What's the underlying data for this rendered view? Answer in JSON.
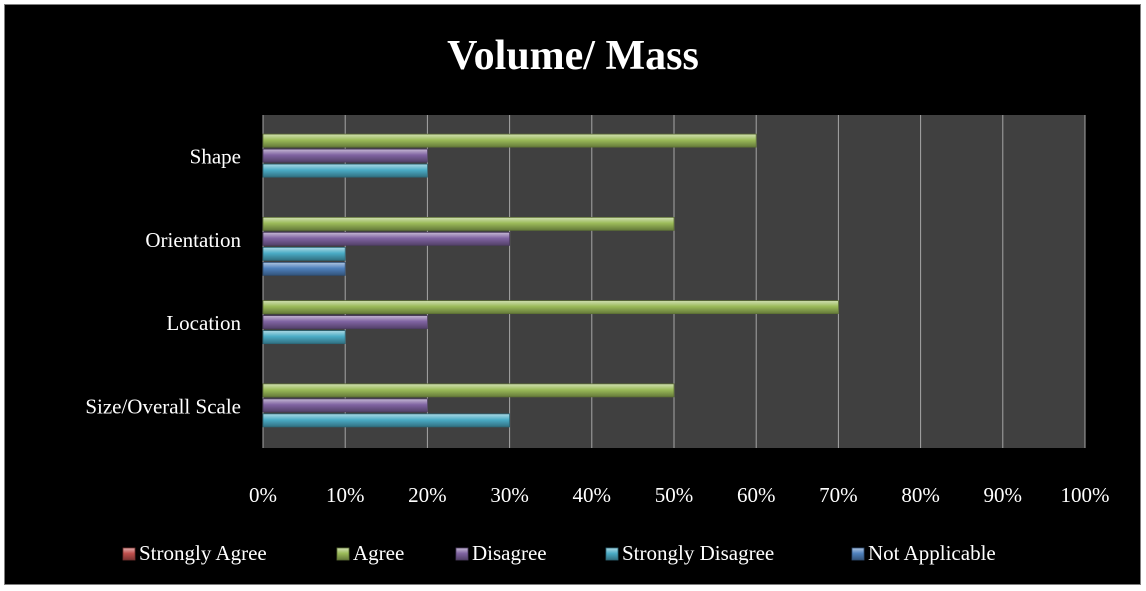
{
  "chart_data": {
    "type": "bar",
    "orientation": "horizontal",
    "title": "Volume/ Mass",
    "xlabel": "",
    "ylabel": "",
    "categories": [
      "Shape",
      "Orientation",
      "Location",
      "Size/Overall Scale"
    ],
    "series": [
      {
        "name": "Strongly Agree",
        "color": "#c0504d",
        "values": [
          0,
          0,
          0,
          0
        ]
      },
      {
        "name": "Agree",
        "color": "#9bbb59",
        "values": [
          60,
          50,
          70,
          50
        ]
      },
      {
        "name": "Disagree",
        "color": "#8064a2",
        "values": [
          20,
          30,
          20,
          20
        ]
      },
      {
        "name": "Strongly Disagree",
        "color": "#4bacc6",
        "values": [
          20,
          10,
          10,
          30
        ]
      },
      {
        "name": "Not Applicable",
        "color": "#4f81bd",
        "values": [
          0,
          10,
          0,
          0
        ]
      }
    ],
    "xlim": [
      0,
      100
    ],
    "xticks": [
      "0%",
      "10%",
      "20%",
      "30%",
      "40%",
      "50%",
      "60%",
      "70%",
      "80%",
      "90%",
      "100%"
    ],
    "grid": "vertical",
    "legend": "bottom",
    "plot_background": "#404040",
    "chart_background": "#000000"
  }
}
